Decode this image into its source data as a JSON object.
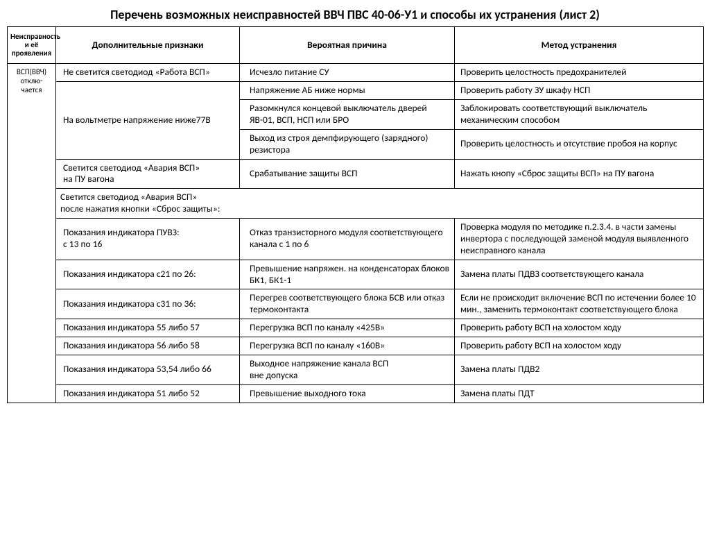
{
  "title": "Перечень возможных неисправностей ВВЧ ПВС 40-06-У1 и способы их устранения (лист 2)",
  "headers": {
    "c1": "Неисправность и её проявления",
    "c2": "Дополнительные признаки",
    "c3": "Вероятная причина",
    "c4": "Метод устранения"
  },
  "fault_label": "ВСП(ВВЧ) отклю-чается",
  "rows": [
    {
      "c2": "Не светится светодиод «Работа ВСП»",
      "c3": "Исчезло питание СУ",
      "c4": "Проверить целостность предохранителей"
    },
    {
      "c2": "На вольтметре  напряжение ниже77В",
      "c2_rowspan": 3,
      "c3": "Напряжение АБ ниже нормы",
      "c4": "Проверить работу ЗУ шкафу НСП"
    },
    {
      "c3": "Разомкнулся концевой выключатель дверей ЯВ-01, ВСП, НСП или БРО",
      "c4": "Заблокировать соответствующий выключатель механическим способом"
    },
    {
      "c3": "Выход из строя демпфирующего (зарядного) резистора",
      "c4": "Проверить целостность и отсутствие пробоя на корпус"
    },
    {
      "c2": "Светится светодиод «Авария ВСП»\n на ПУ вагона",
      "c3": "Срабатывание защиты ВСП",
      "c4": "Нажать кнопу «Сброс защиты ВСП» на ПУ вагона"
    },
    {
      "c2_colspan": 3,
      "c2": "Светится светодиод «Авария ВСП»\nпосле нажатия кнопки «Сброс защиты»:"
    },
    {
      "c2": "Показания индикатора ПУВЗ:\nс 13 по 16",
      "c3": "Отказ транзисторного модуля соответствующего канала с 1 по 6",
      "c4": "Проверка модуля по методике п.2.3.4. в части замены инвертора с последующей заменой модуля выявленного неисправного канала"
    },
    {
      "c2": "Показания индикатора с21 по 26:",
      "c3": "Превышение напряжен. на конденсаторах блоков БК1, БК1-1",
      "c4": "Замена платы ПДВЗ соответствующего канала"
    },
    {
      "c2": "Показания индикатора с31 по 36:",
      "c3": "Перегрев соответствующего блока БСВ или отказ термоконтакта",
      "c4": "Если не происходит включение ВСП по истечении более 10 мин., заменить термоконтакт соответствующего блока"
    },
    {
      "c2": "Показания индикатора 55 либо 57",
      "c3": "Перегрузка ВСП по каналу «425В»",
      "c4": "Проверить работу ВСП на холостом ходу"
    },
    {
      "c2": "Показания индикатора 56 либо 58",
      "c3": "Перегрузка ВСП по каналу «160В»",
      "c4": "Проверить работу ВСП на холостом ходу"
    },
    {
      "c2": "Показания индикатора 53,54 либо 66",
      "c3": "Выходное напряжение канала ВСП\nвне допуска",
      "c4": "Замена платы ПДВ2"
    },
    {
      "c2": "Показания индикатора 51 либо 52",
      "c3": "Превышение выходного тока",
      "c4": "Замена платы ПДТ"
    }
  ],
  "style": {
    "background": "#ffffff",
    "text_color": "#000000",
    "border_color": "#000000",
    "title_fontsize": 18,
    "header_fontsize": 13.5,
    "cell_fontsize": 13.5,
    "c1_fontsize": 11,
    "font_family": "Calibri"
  }
}
